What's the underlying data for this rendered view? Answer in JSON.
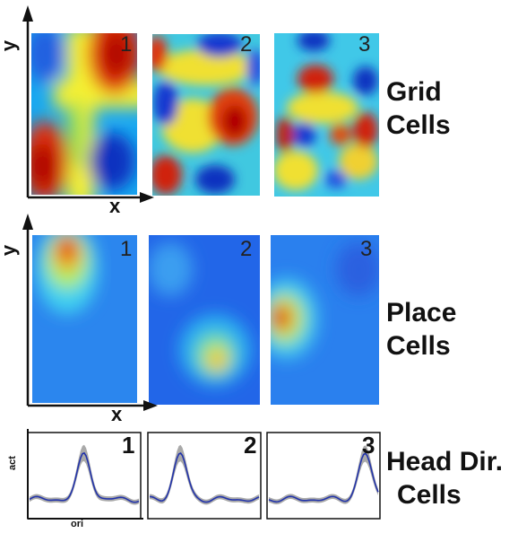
{
  "rows": [
    {
      "key": "grid",
      "label_lines": [
        "Grid",
        "Cells"
      ]
    },
    {
      "key": "place",
      "label_lines": [
        "Place",
        "Cells"
      ]
    },
    {
      "key": "head",
      "label_lines": [
        "Head Dir.",
        "Cells"
      ]
    }
  ],
  "panel_numbers": [
    "1",
    "2",
    "3"
  ],
  "axes": {
    "map_x": "x",
    "map_y": "y",
    "curve_x": "ori",
    "curve_y": "act"
  },
  "colors": {
    "curve_line": "#2233aa",
    "curve_band": "#a9a9a9"
  }
}
